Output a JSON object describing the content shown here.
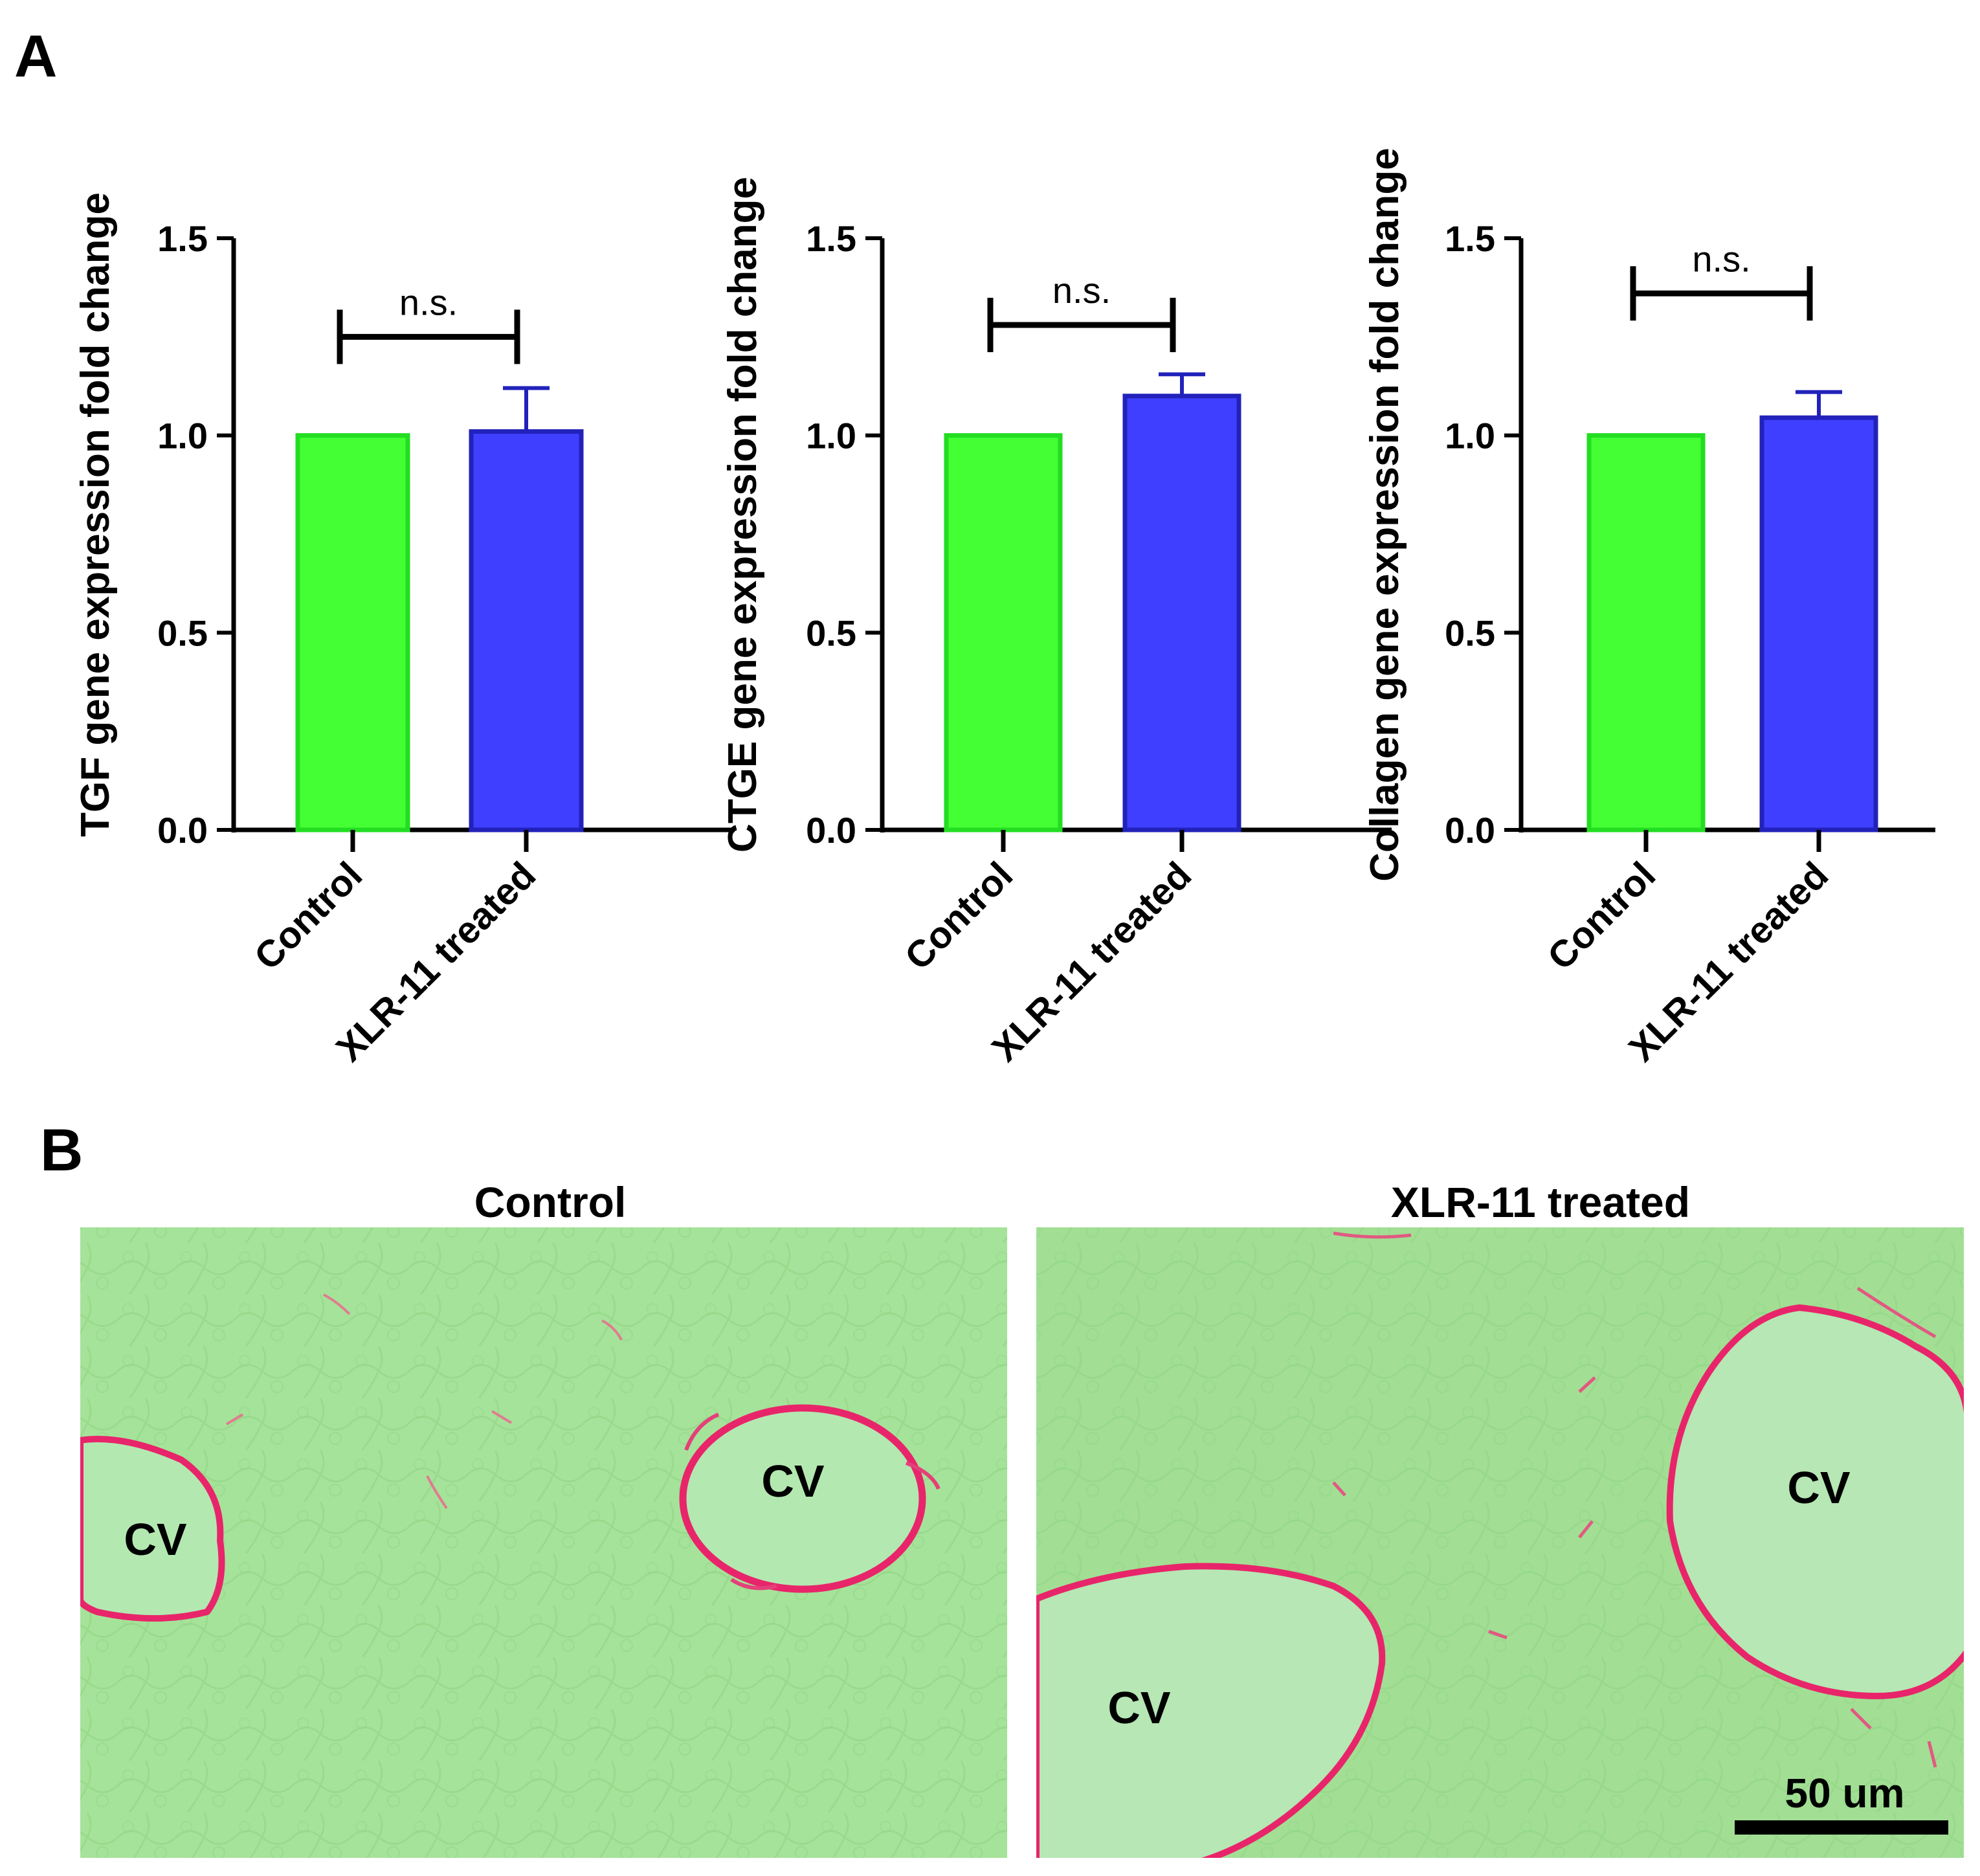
{
  "panel_a_label": "A",
  "panel_b_label": "B",
  "colors": {
    "control_fill": "#44ff33",
    "control_edge": "#22dd22",
    "treated_fill": "#3f3fff",
    "treated_edge": "#2222bb",
    "axis": "#000000",
    "tissue": "#a6e39a",
    "vessel": "#b3e8b0",
    "collagen_stain": "#ee2266"
  },
  "chart_data": [
    {
      "type": "bar",
      "ylabel": "TGF gene expression fold change",
      "categories": [
        "Control",
        "XLR-11 treated"
      ],
      "values": [
        1.0,
        1.01
      ],
      "errors": [
        0,
        0.11
      ],
      "ylim": [
        0,
        1.5
      ],
      "yticks": [
        "0.0",
        "0.5",
        "1.0",
        "1.5"
      ],
      "significance": "n.s.",
      "sig_level": 1.25
    },
    {
      "type": "bar",
      "ylabel": "CTGE gene expression fold change",
      "categories": [
        "Control",
        "XLR-11 treated"
      ],
      "values": [
        1.0,
        1.1
      ],
      "errors": [
        0,
        0.055
      ],
      "ylim": [
        0,
        1.5
      ],
      "yticks": [
        "0.0",
        "0.5",
        "1.0",
        "1.5"
      ],
      "significance": "n.s.",
      "sig_level": 1.28
    },
    {
      "type": "bar",
      "ylabel": "Collagen gene expression fold change",
      "categories": [
        "Control",
        "XLR-11 treated"
      ],
      "values": [
        1.0,
        1.045
      ],
      "errors": [
        0,
        0.065
      ],
      "ylim": [
        0,
        1.5
      ],
      "yticks": [
        "0.0",
        "0.5",
        "1.0",
        "1.5"
      ],
      "significance": "n.s.",
      "sig_level": 1.36
    }
  ],
  "micrographs": [
    {
      "title": "Control",
      "vessel_label": "CV"
    },
    {
      "title": "XLR-11 treated",
      "vessel_label": "CV",
      "scale_bar": "50 um"
    }
  ]
}
